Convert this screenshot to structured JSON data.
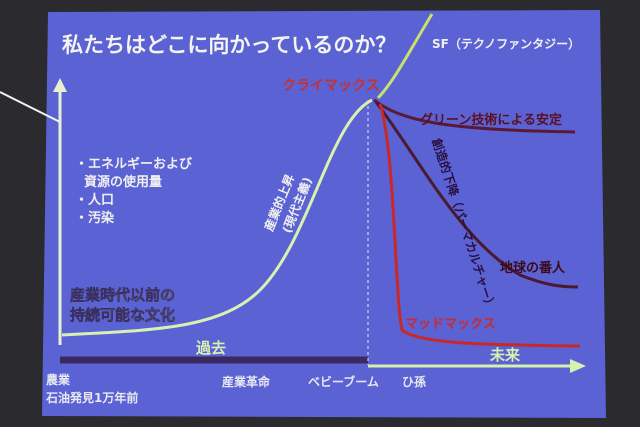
{
  "title": "私たちはどこに向かっているのか？",
  "labels": {
    "sf": "SF（テクノファンタジー）",
    "climax": "クライマックス",
    "green": "グリーン技術による安定",
    "descent": "創造的下降（パーマカルチャー）",
    "guardian": "地球の番人",
    "madmax": "マッドマックス",
    "rise_1": "産業的上昇",
    "rise_2": "(現代主義)",
    "pre_1": "産業時代以前の",
    "pre_2": "持続可能な文化",
    "past": "過去",
    "future": "未来"
  },
  "axis_items": [
    "・エネルギーおよび",
    "資源の使用量",
    "・人口",
    "・汚染"
  ],
  "timeline": {
    "agri": "農業",
    "oil": "石油発見1万年前",
    "industrial": "産業革命",
    "boom": "ベビーブーム",
    "great": "ひ孫"
  }
}
